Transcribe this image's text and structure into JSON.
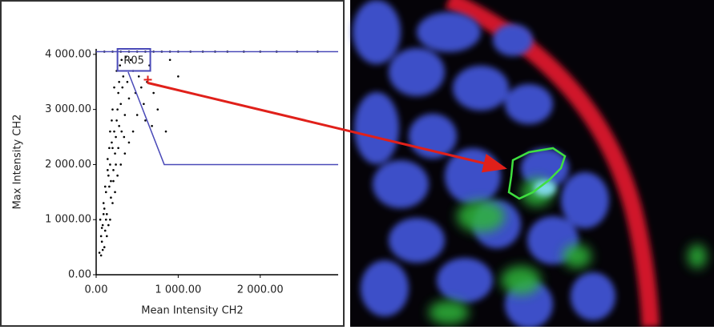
{
  "chart_data": {
    "type": "scatter",
    "x_label": "Mean Intensity CH2",
    "y_label": "Max Intensity CH2",
    "color": "#000000",
    "xlim": [
      0,
      2950
    ],
    "ylim": [
      0,
      4100
    ],
    "xticks": [
      {
        "value": 0,
        "label": "0.00"
      },
      {
        "value": 1000,
        "label": "1 000.00"
      },
      {
        "value": 2000,
        "label": "2 000.00"
      }
    ],
    "yticks": [
      {
        "value": 0,
        "label": "0.00"
      },
      {
        "value": 1000,
        "label": "1 000.00"
      },
      {
        "value": 2000,
        "label": "2 000.00"
      },
      {
        "value": 3000,
        "label": "3 000.00"
      },
      {
        "value": 4000,
        "label": "4 000.00"
      }
    ],
    "x": [
      40,
      60,
      80,
      50,
      100,
      120,
      90,
      150,
      130,
      170,
      200,
      180,
      220,
      250,
      140,
      160,
      110,
      70,
      190,
      230,
      260,
      280,
      300,
      210,
      240,
      270,
      320,
      350,
      330,
      290,
      380,
      400,
      420,
      450,
      360,
      480,
      520,
      550,
      500,
      580,
      620,
      650,
      700,
      750,
      680,
      600,
      450,
      400,
      350,
      300,
      260,
      230,
      200,
      170,
      150,
      130,
      100,
      80,
      60,
      120,
      180,
      210,
      240,
      270,
      310,
      340,
      280,
      310,
      250,
      220,
      200,
      190,
      170,
      160,
      140,
      110,
      90,
      70,
      100,
      200,
      300,
      400,
      500,
      600,
      700,
      800,
      900,
      1000,
      1150,
      1300,
      1450,
      1600,
      1800,
      2000,
      2200,
      2450,
      2700,
      900,
      850,
      1000
    ],
    "values": [
      400,
      700,
      900,
      1000,
      1200,
      1500,
      1300,
      1800,
      1100,
      2000,
      2300,
      1700,
      2600,
      2800,
      2100,
      1600,
      800,
      600,
      2400,
      2200,
      3000,
      2700,
      3100,
      1900,
      2500,
      3300,
      3400,
      2900,
      3600,
      3800,
      3500,
      3200,
      3900,
      3700,
      3950,
      3300,
      3600,
      3400,
      2900,
      3100,
      3500,
      3800,
      3300,
      3000,
      2700,
      2800,
      2600,
      2400,
      2200,
      2000,
      1800,
      1500,
      1300,
      1000,
      900,
      700,
      500,
      450,
      350,
      1000,
      1400,
      1700,
      2000,
      2300,
      2600,
      2500,
      3500,
      3900,
      3700,
      3400,
      3000,
      2800,
      2600,
      2300,
      1900,
      1600,
      1100,
      850,
      4050,
      4050,
      4050,
      4050,
      4050,
      4050,
      4050,
      4050,
      4050,
      4050,
      4050,
      4050,
      4050,
      4050,
      4050,
      4050,
      4050,
      4050,
      4050,
      3900,
      2600,
      3600
    ],
    "gate": {
      "x": [
        390,
        830,
        2950
      ],
      "y": [
        3680,
        2000,
        2000
      ]
    },
    "gate_top": {
      "x": [
        0,
        2950
      ],
      "y": [
        4050,
        4050
      ]
    },
    "region": {
      "label": "R05",
      "x": [
        260,
        660
      ],
      "y": [
        3700,
        4100
      ]
    },
    "selected_point": {
      "x": 630,
      "y": 3540
    }
  }
}
